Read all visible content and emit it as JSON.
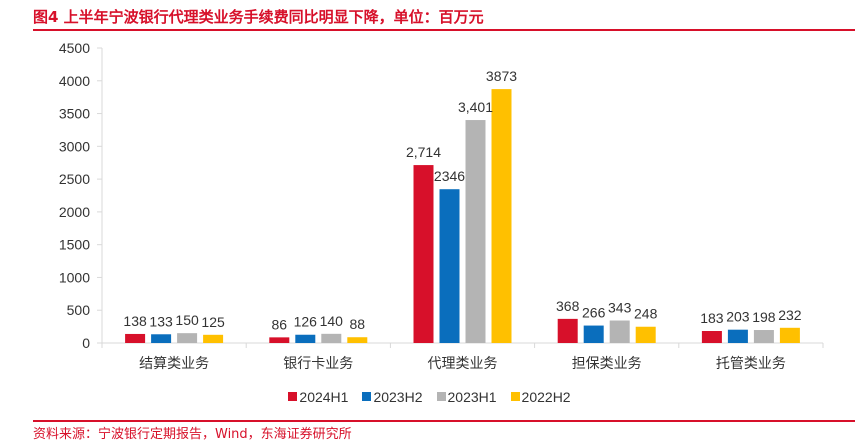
{
  "header": {
    "title": "图4  上半年宁波银行代理类业务手续费同比明显下降，单位：百万元"
  },
  "footer": {
    "source": "资料来源：宁波银行定期报告，Wind，东海证券研究所"
  },
  "chart_data": {
    "type": "bar",
    "title": "上半年宁波银行代理类业务手续费同比明显下降，单位：百万元",
    "xlabel": "",
    "ylabel": "",
    "ylim": [
      0,
      4500
    ],
    "yticks": [
      0,
      500,
      1000,
      1500,
      2000,
      2500,
      3000,
      3500,
      4000,
      4500
    ],
    "grid": false,
    "legend_position": "bottom",
    "categories": [
      "结算类业务",
      "银行卡业务",
      "代理类业务",
      "担保类业务",
      "托管类业务"
    ],
    "series": [
      {
        "name": "2024H1",
        "color": "#d7102a",
        "values": [
          138,
          86,
          2714,
          368,
          183
        ],
        "labels": [
          "138",
          "86",
          "2,714",
          "368",
          "183"
        ]
      },
      {
        "name": "2023H2",
        "color": "#0a6ebd",
        "values": [
          133,
          126,
          2346,
          266,
          203
        ],
        "labels": [
          "133",
          "126",
          "2346",
          "266",
          "203"
        ]
      },
      {
        "name": "2023H1",
        "color": "#b4b4b4",
        "values": [
          150,
          140,
          3401,
          343,
          198
        ],
        "labels": [
          "150",
          "140",
          "3,401",
          "343",
          "198"
        ]
      },
      {
        "name": "2022H2",
        "color": "#ffc000",
        "values": [
          125,
          88,
          3873,
          248,
          232
        ],
        "labels": [
          "125",
          "88",
          "3873",
          "248",
          "232"
        ]
      }
    ]
  }
}
